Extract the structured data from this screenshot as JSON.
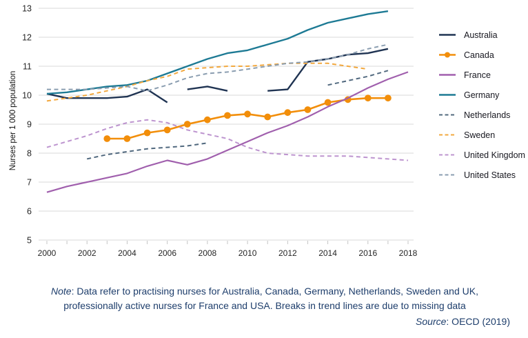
{
  "figure": {
    "y_axis_title": "Nurses per 1 000 population",
    "note_label": "Note",
    "note_line1_rest": ": Data refer to practising nurses for Australia, Canada, Germany, Netherlands, Sweden and UK,",
    "note_line2": "professionally active nurses for France and USA. Breaks in trend lines are due to missing data",
    "source_label": "Source",
    "source_rest": ": OECD (2019)"
  },
  "colors": {
    "grid": "#d9d9d9",
    "axis_tick": "#c4c4c4",
    "tick_label": "#262626",
    "note_text": "#1d3d6b",
    "legend_text": "#17171f"
  },
  "chart_data": {
    "type": "line",
    "title": "",
    "xlabel": "",
    "ylabel": "Nurses per 1 000 population",
    "xlim": [
      2000,
      2018
    ],
    "ylim": [
      5,
      13
    ],
    "x_ticks": [
      2000,
      2002,
      2004,
      2006,
      2008,
      2010,
      2012,
      2014,
      2016,
      2018
    ],
    "y_ticks": [
      5,
      6,
      7,
      8,
      9,
      10,
      11,
      12,
      13
    ],
    "grid": "horizontal",
    "legend_position": "right",
    "breaks_note": "Breaks in trend lines are due to missing data",
    "series": [
      {
        "name": "Australia",
        "color": "#1f3352",
        "style": "solid",
        "marker": false,
        "width": 2.4,
        "segments": [
          [
            [
              2000,
              10.05
            ],
            [
              2001,
              9.9
            ],
            [
              2002,
              9.9
            ],
            [
              2003,
              9.9
            ],
            [
              2004,
              9.95
            ],
            [
              2005,
              10.2
            ],
            [
              2006,
              9.75
            ]
          ],
          [
            [
              2007,
              10.2
            ],
            [
              2008,
              10.3
            ],
            [
              2009,
              10.15
            ]
          ],
          [
            [
              2011,
              10.15
            ],
            [
              2012,
              10.2
            ],
            [
              2013,
              11.15
            ],
            [
              2014,
              11.25
            ],
            [
              2015,
              11.4
            ],
            [
              2016,
              11.45
            ],
            [
              2017,
              11.6
            ]
          ]
        ]
      },
      {
        "name": "Canada",
        "color": "#f28e0a",
        "style": "solid",
        "marker": true,
        "width": 2.6,
        "segments": [
          [
            [
              2003,
              8.5
            ],
            [
              2004,
              8.5
            ],
            [
              2005,
              8.7
            ],
            [
              2006,
              8.8
            ],
            [
              2007,
              9.0
            ],
            [
              2008,
              9.15
            ],
            [
              2009,
              9.3
            ],
            [
              2010,
              9.35
            ],
            [
              2011,
              9.25
            ],
            [
              2012,
              9.4
            ],
            [
              2013,
              9.5
            ],
            [
              2014,
              9.75
            ],
            [
              2015,
              9.85
            ],
            [
              2016,
              9.9
            ],
            [
              2017,
              9.9
            ]
          ]
        ]
      },
      {
        "name": "France",
        "color": "#a05fad",
        "style": "solid",
        "marker": false,
        "width": 2.2,
        "segments": [
          [
            [
              2000,
              6.65
            ],
            [
              2001,
              6.85
            ],
            [
              2002,
              7.0
            ],
            [
              2003,
              7.15
            ],
            [
              2004,
              7.3
            ],
            [
              2005,
              7.55
            ],
            [
              2006,
              7.75
            ],
            [
              2007,
              7.6
            ],
            [
              2008,
              7.8
            ],
            [
              2009,
              8.1
            ],
            [
              2010,
              8.4
            ],
            [
              2011,
              8.7
            ],
            [
              2012,
              8.95
            ],
            [
              2013,
              9.25
            ],
            [
              2014,
              9.6
            ],
            [
              2015,
              9.9
            ],
            [
              2016,
              10.25
            ],
            [
              2017,
              10.55
            ],
            [
              2018,
              10.8
            ]
          ]
        ]
      },
      {
        "name": "Germany",
        "color": "#1d7a94",
        "style": "solid",
        "marker": false,
        "width": 2.4,
        "segments": [
          [
            [
              2000,
              10.05
            ],
            [
              2001,
              10.1
            ],
            [
              2002,
              10.2
            ],
            [
              2003,
              10.3
            ],
            [
              2004,
              10.35
            ],
            [
              2005,
              10.5
            ],
            [
              2006,
              10.75
            ],
            [
              2007,
              11.0
            ],
            [
              2008,
              11.25
            ],
            [
              2009,
              11.45
            ],
            [
              2010,
              11.55
            ],
            [
              2011,
              11.75
            ],
            [
              2012,
              11.95
            ],
            [
              2013,
              12.25
            ],
            [
              2014,
              12.5
            ],
            [
              2015,
              12.65
            ],
            [
              2016,
              12.8
            ],
            [
              2017,
              12.9
            ]
          ]
        ]
      },
      {
        "name": "Netherlands",
        "color": "#50687e",
        "style": "dashed",
        "marker": false,
        "width": 2.0,
        "segments": [
          [
            [
              2002,
              7.8
            ],
            [
              2003,
              7.95
            ],
            [
              2004,
              8.05
            ],
            [
              2005,
              8.15
            ],
            [
              2006,
              8.2
            ],
            [
              2007,
              8.25
            ],
            [
              2008,
              8.35
            ]
          ],
          [
            [
              2014,
              10.35
            ],
            [
              2015,
              10.5
            ],
            [
              2016,
              10.65
            ],
            [
              2017,
              10.85
            ]
          ]
        ]
      },
      {
        "name": "Sweden",
        "color": "#f2a83e",
        "style": "dashed",
        "marker": false,
        "width": 2.0,
        "segments": [
          [
            [
              2000,
              9.8
            ],
            [
              2001,
              9.9
            ],
            [
              2002,
              10.0
            ],
            [
              2003,
              10.15
            ],
            [
              2004,
              10.3
            ],
            [
              2005,
              10.5
            ],
            [
              2006,
              10.65
            ],
            [
              2007,
              10.9
            ],
            [
              2008,
              10.95
            ],
            [
              2009,
              11.0
            ],
            [
              2010,
              11.0
            ],
            [
              2011,
              11.05
            ],
            [
              2012,
              11.1
            ],
            [
              2013,
              11.1
            ],
            [
              2014,
              11.1
            ],
            [
              2015,
              11.0
            ],
            [
              2016,
              10.9
            ]
          ]
        ]
      },
      {
        "name": "United Kingdom",
        "color": "#bd94cf",
        "style": "dashed",
        "marker": false,
        "width": 2.0,
        "segments": [
          [
            [
              2000,
              8.2
            ],
            [
              2001,
              8.4
            ],
            [
              2002,
              8.6
            ],
            [
              2003,
              8.85
            ],
            [
              2004,
              9.05
            ],
            [
              2005,
              9.15
            ],
            [
              2006,
              9.05
            ],
            [
              2007,
              8.8
            ],
            [
              2008,
              8.65
            ],
            [
              2009,
              8.5
            ],
            [
              2010,
              8.2
            ],
            [
              2011,
              8.0
            ],
            [
              2012,
              7.95
            ],
            [
              2013,
              7.9
            ],
            [
              2014,
              7.9
            ],
            [
              2015,
              7.9
            ],
            [
              2016,
              7.85
            ],
            [
              2017,
              7.8
            ],
            [
              2018,
              7.75
            ]
          ]
        ]
      },
      {
        "name": "United States",
        "color": "#8a9db0",
        "style": "dashed",
        "marker": false,
        "width": 2.0,
        "segments": [
          [
            [
              2000,
              10.2
            ],
            [
              2001,
              10.2
            ],
            [
              2002,
              10.2
            ],
            [
              2003,
              10.25
            ],
            [
              2004,
              10.3
            ],
            [
              2005,
              10.15
            ],
            [
              2006,
              10.35
            ],
            [
              2007,
              10.6
            ],
            [
              2008,
              10.75
            ],
            [
              2009,
              10.8
            ],
            [
              2010,
              10.9
            ],
            [
              2011,
              11.0
            ],
            [
              2012,
              11.1
            ],
            [
              2013,
              11.15
            ],
            [
              2014,
              11.25
            ],
            [
              2015,
              11.4
            ],
            [
              2016,
              11.6
            ],
            [
              2017,
              11.75
            ]
          ]
        ]
      }
    ]
  }
}
